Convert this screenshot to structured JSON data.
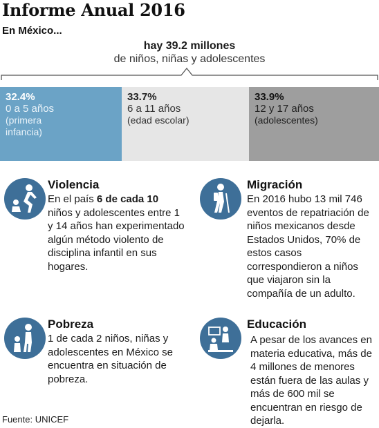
{
  "title": "Informe Anual 2016",
  "subtitle": "En México...",
  "total": {
    "line1": "hay 39.2 millones",
    "line2": "de niños, niñas y adolescentes"
  },
  "segments": [
    {
      "pct": "32.4%",
      "range": "0 a 5 años",
      "note_1": "(primera",
      "note_2": "infancia)",
      "share": 32.4,
      "color": "#6ba3c6"
    },
    {
      "pct": "33.7%",
      "range": "6 a 11 años",
      "note_1": "(edad escolar)",
      "share": 33.7,
      "color": "#e6e6e6"
    },
    {
      "pct": "33.9%",
      "range": "12 y 17 años",
      "note_1": "(adolescentes)",
      "share": 33.9,
      "color": "#9e9e9e"
    }
  ],
  "icon_color": "#3e6f98",
  "sections": {
    "violencia": {
      "icon": "violence-icon",
      "title": "Violencia",
      "pre": "En el país ",
      "bold": "6 de cada 10",
      "post": "niños y adolescentes entre 1 y 14 años han experimentado algún método violento de disciplina infantil en sus hogares."
    },
    "migracion": {
      "icon": "migration-hiker-icon",
      "title": "Migración",
      "body": "En 2016 hubo 13 mil 746 eventos de repatriación de niños mexicanos desde Estados Unidos, 70% de estos casos correspondieron a niños que viajaron sin la compañía de un adulto."
    },
    "pobreza": {
      "icon": "poverty-family-icon",
      "title": "Pobreza",
      "body": "1 de cada 2 niños, niñas y adolescentes en México se encuentra en situación de pobreza."
    },
    "educacion": {
      "icon": "education-classroom-icon",
      "title": "Educación",
      "body": "A pesar de los avances en materia educativa, más de 4 millones de menores están fuera de las aulas y más de 600 mil se encuentran en riesgo de dejarla."
    }
  },
  "footer": "Fuente: UNICEF"
}
